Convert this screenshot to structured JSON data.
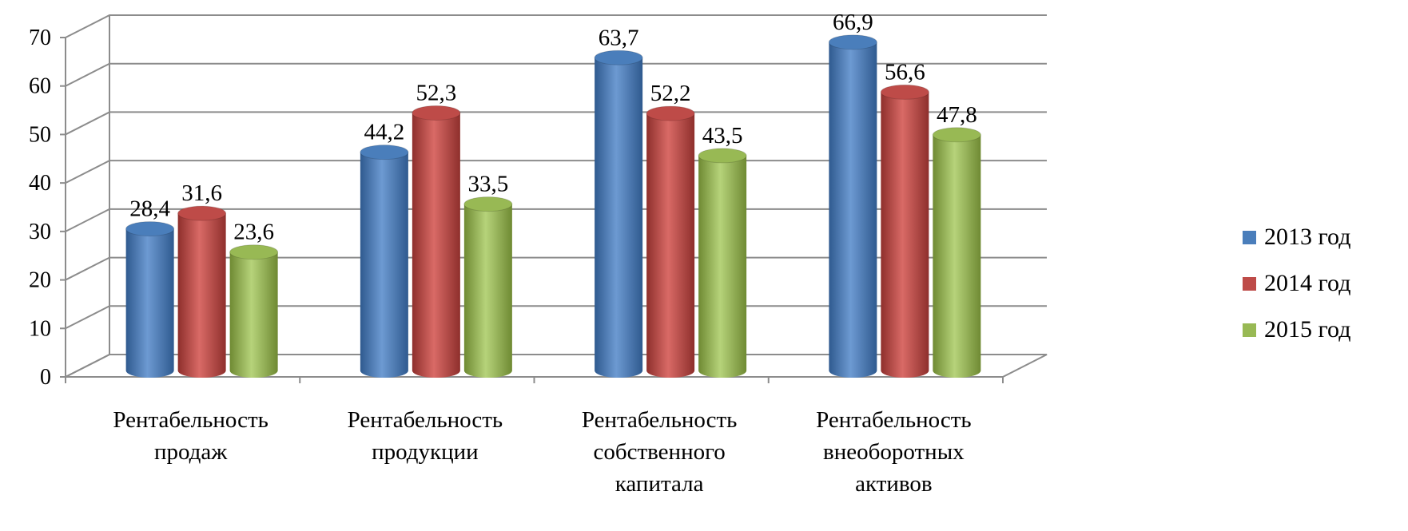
{
  "chart_data": {
    "type": "bar",
    "title": "",
    "xlabel": "",
    "ylabel": "",
    "ylim": [
      0,
      70
    ],
    "yticks": [
      "0",
      "10",
      "20",
      "30",
      "40",
      "50",
      "60",
      "70"
    ],
    "grid": true,
    "legend_position": "right",
    "categories": [
      [
        "Рентабельность",
        "продаж"
      ],
      [
        "Рентабельность",
        "продукции"
      ],
      [
        "Рентабельность",
        "собственного",
        "капитала"
      ],
      [
        "Рентабельность",
        "внеоборотных",
        "активов"
      ]
    ],
    "series": [
      {
        "name": "2013 год",
        "color": "#4a7ebb",
        "values": [
          28.4,
          44.2,
          63.7,
          66.9
        ],
        "labels": [
          "28,4",
          "44,2",
          "63,7",
          "66,9"
        ]
      },
      {
        "name": "2014 год",
        "color": "#be4b48",
        "values": [
          31.6,
          52.3,
          52.2,
          56.6
        ],
        "labels": [
          "31,6",
          "52,3",
          "52,2",
          "56,6"
        ]
      },
      {
        "name": "2015 год",
        "color": "#98b954",
        "values": [
          23.6,
          33.5,
          43.5,
          47.8
        ],
        "labels": [
          "23,6",
          "33,5",
          "43,5",
          "47,8"
        ]
      }
    ]
  }
}
